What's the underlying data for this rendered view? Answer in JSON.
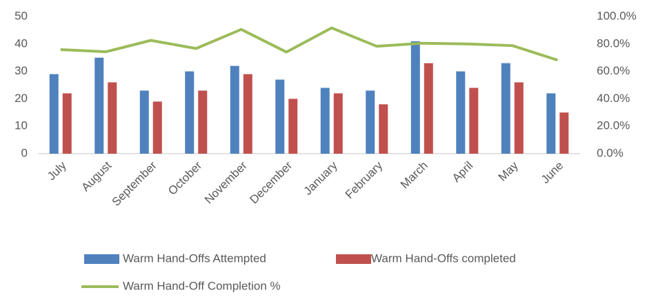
{
  "chart_data": {
    "type": "bar",
    "categories": [
      "July",
      "August",
      "September",
      "October",
      "November",
      "December",
      "January",
      "February",
      "March",
      "April",
      "May",
      "June"
    ],
    "series": [
      {
        "name": "Warm Hand-Offs Attempted",
        "color": "#4f81bd",
        "values": [
          29,
          35,
          23,
          30,
          32,
          27,
          24,
          23,
          41,
          30,
          33,
          22
        ]
      },
      {
        "name": "Warm Hand-Offs completed",
        "color": "#c0504d",
        "values": [
          22,
          26,
          19,
          23,
          29,
          20,
          22,
          18,
          33,
          24,
          26,
          15
        ]
      },
      {
        "name": "Warm Hand-Off Completion %",
        "color": "#9bbb59",
        "type": "line",
        "axis": "y2",
        "values": [
          75.9,
          74.3,
          82.6,
          76.7,
          90.6,
          74.1,
          91.7,
          78.3,
          80.5,
          80.0,
          78.8,
          68.2
        ]
      }
    ],
    "ylim": [
      0,
      50
    ],
    "yticks": [
      0,
      10,
      20,
      30,
      40,
      50
    ],
    "y2lim": [
      0,
      100
    ],
    "y2ticks": [
      {
        "value": 0,
        "label": "0.0%"
      },
      {
        "value": 20,
        "label": "20.0%"
      },
      {
        "value": 40,
        "label": "40.0%"
      },
      {
        "value": 60,
        "label": "60.0%"
      },
      {
        "value": 80,
        "label": "80.0%"
      },
      {
        "value": 100,
        "label": "100.0%"
      }
    ],
    "grid": false,
    "legend": "bottom"
  }
}
